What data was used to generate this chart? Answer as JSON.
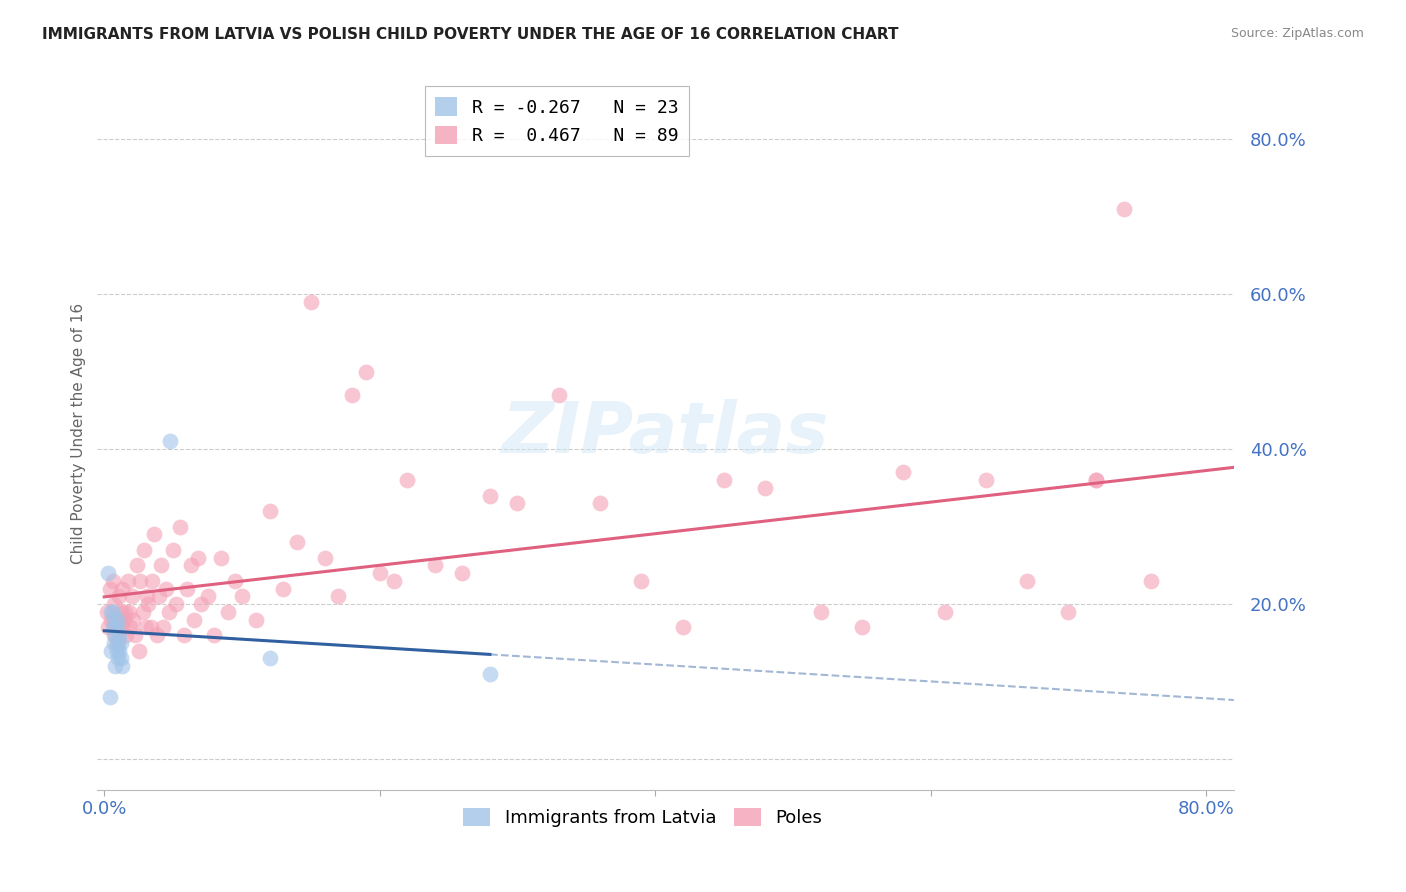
{
  "title": "IMMIGRANTS FROM LATVIA VS POLISH CHILD POVERTY UNDER THE AGE OF 16 CORRELATION CHART",
  "source": "Source: ZipAtlas.com",
  "ylabel": "Child Poverty Under the Age of 16",
  "xlim": [
    -0.005,
    0.82
  ],
  "ylim": [
    -0.04,
    0.88
  ],
  "x_tick_positions": [
    0.0,
    0.2,
    0.4,
    0.6,
    0.8
  ],
  "x_tick_labels": [
    "0.0%",
    "",
    "",
    "",
    "80.0%"
  ],
  "y_tick_positions": [
    0.0,
    0.2,
    0.4,
    0.6,
    0.8
  ],
  "y_tick_labels": [
    "",
    "20.0%",
    "40.0%",
    "60.0%",
    "80.0%"
  ],
  "legend_r_label1": "R = -0.267   N = 23",
  "legend_r_label2": "R =  0.467   N = 89",
  "legend_label1": "Immigrants from Latvia",
  "legend_label2": "Poles",
  "watermark": "ZIPatlas",
  "background_color": "#ffffff",
  "grid_color": "#cccccc",
  "latvia_x": [
    0.003,
    0.004,
    0.005,
    0.005,
    0.006,
    0.006,
    0.007,
    0.007,
    0.008,
    0.008,
    0.009,
    0.009,
    0.01,
    0.01,
    0.01,
    0.011,
    0.011,
    0.012,
    0.012,
    0.013,
    0.048,
    0.12,
    0.28
  ],
  "latvia_y": [
    0.24,
    0.08,
    0.19,
    0.14,
    0.17,
    0.19,
    0.15,
    0.18,
    0.12,
    0.16,
    0.14,
    0.17,
    0.13,
    0.15,
    0.18,
    0.14,
    0.16,
    0.13,
    0.15,
    0.12,
    0.41,
    0.13,
    0.11
  ],
  "poles_x": [
    0.002,
    0.003,
    0.004,
    0.005,
    0.006,
    0.007,
    0.007,
    0.008,
    0.009,
    0.01,
    0.011,
    0.011,
    0.012,
    0.013,
    0.013,
    0.014,
    0.015,
    0.016,
    0.017,
    0.018,
    0.019,
    0.02,
    0.021,
    0.022,
    0.024,
    0.025,
    0.026,
    0.028,
    0.029,
    0.03,
    0.031,
    0.032,
    0.034,
    0.035,
    0.036,
    0.038,
    0.04,
    0.041,
    0.043,
    0.045,
    0.047,
    0.05,
    0.052,
    0.055,
    0.058,
    0.06,
    0.063,
    0.065,
    0.068,
    0.07,
    0.075,
    0.08,
    0.085,
    0.09,
    0.095,
    0.1,
    0.11,
    0.12,
    0.13,
    0.14,
    0.15,
    0.16,
    0.17,
    0.18,
    0.19,
    0.2,
    0.21,
    0.22,
    0.24,
    0.26,
    0.28,
    0.3,
    0.33,
    0.36,
    0.39,
    0.42,
    0.45,
    0.48,
    0.52,
    0.55,
    0.58,
    0.61,
    0.64,
    0.67,
    0.7,
    0.72,
    0.74,
    0.76,
    0.72
  ],
  "poles_y": [
    0.19,
    0.17,
    0.22,
    0.18,
    0.23,
    0.16,
    0.2,
    0.17,
    0.15,
    0.18,
    0.21,
    0.16,
    0.19,
    0.17,
    0.22,
    0.18,
    0.19,
    0.16,
    0.23,
    0.19,
    0.17,
    0.21,
    0.18,
    0.16,
    0.25,
    0.14,
    0.23,
    0.19,
    0.27,
    0.17,
    0.21,
    0.2,
    0.17,
    0.23,
    0.29,
    0.16,
    0.21,
    0.25,
    0.17,
    0.22,
    0.19,
    0.27,
    0.2,
    0.3,
    0.16,
    0.22,
    0.25,
    0.18,
    0.26,
    0.2,
    0.21,
    0.16,
    0.26,
    0.19,
    0.23,
    0.21,
    0.18,
    0.32,
    0.22,
    0.28,
    0.59,
    0.26,
    0.21,
    0.47,
    0.5,
    0.24,
    0.23,
    0.36,
    0.25,
    0.24,
    0.34,
    0.33,
    0.47,
    0.33,
    0.23,
    0.17,
    0.36,
    0.35,
    0.19,
    0.17,
    0.37,
    0.19,
    0.36,
    0.23,
    0.19,
    0.36,
    0.71,
    0.23,
    0.36
  ],
  "latvia_color": "#a0c4e8",
  "poles_color": "#f4a0b5",
  "latvia_line_color": "#3060a0",
  "poles_line_color": "#e06080",
  "title_fontsize": 11,
  "source_fontsize": 9,
  "tick_fontsize": 13,
  "ylabel_fontsize": 11
}
